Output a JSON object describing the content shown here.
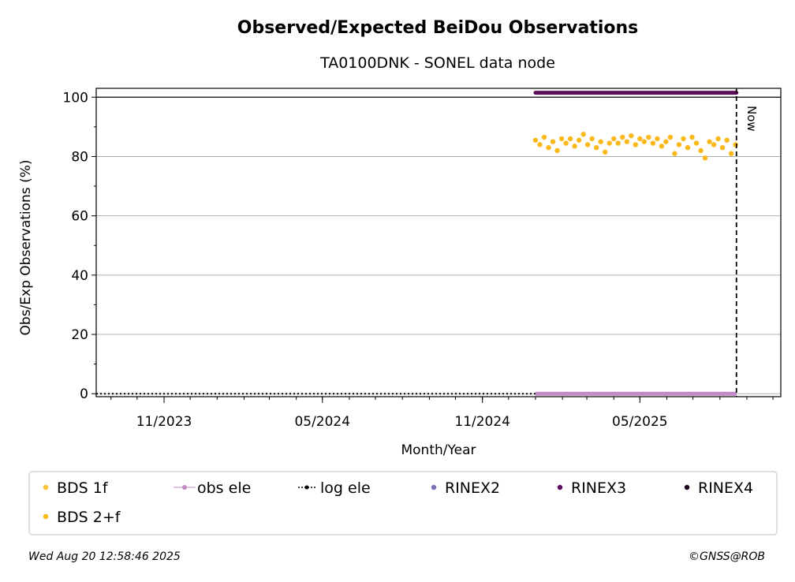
{
  "chart_data": {
    "type": "scatter",
    "title": "Observed/Expected BeiDou Observations",
    "subtitle": "TA0100DNK - SONEL data node",
    "xlabel": "Month/Year",
    "ylabel": "Obs/Exp Observations (%)",
    "x_axis_type": "date",
    "xlim": [
      "2023-08-15",
      "2025-10-10"
    ],
    "ylim": [
      -1,
      103
    ],
    "x_ticks": [
      {
        "date": "2023-11-01",
        "label": "11/2023"
      },
      {
        "date": "2024-05-01",
        "label": "05/2024"
      },
      {
        "date": "2024-11-01",
        "label": "11/2024"
      },
      {
        "date": "2025-05-01",
        "label": "05/2025"
      }
    ],
    "y_ticks": [
      0,
      20,
      40,
      60,
      80,
      100
    ],
    "grid": "horizontal",
    "legend_position": "below",
    "now_marker": {
      "date": "2025-08-20",
      "label": "Now"
    },
    "series": [
      {
        "name": "BDS 1f",
        "color": "#f8c43a",
        "values": []
      },
      {
        "name": "obs ele",
        "color": "#c38ac8",
        "values": [
          {
            "start": "2025-01-01",
            "end": "2025-08-20",
            "y": 0
          }
        ]
      },
      {
        "name": "log ele",
        "color": "#000000",
        "values": [
          {
            "start": "2023-08-15",
            "end": "2025-08-20",
            "y": 0
          }
        ]
      },
      {
        "name": "RINEX2",
        "color": "#7c6fb4",
        "values": []
      },
      {
        "name": "RINEX3",
        "color": "#5e0e5c",
        "values": [
          {
            "start": "2025-01-01",
            "end": "2025-08-20",
            "y": 101.5
          }
        ]
      },
      {
        "name": "RINEX4",
        "color": "#20051e",
        "values": []
      },
      {
        "name": "BDS 2+f",
        "color": "#fbb81a",
        "values": [
          {
            "x": "2025-01-01",
            "y": 85.5
          },
          {
            "x": "2025-01-06",
            "y": 84.0
          },
          {
            "x": "2025-01-11",
            "y": 86.5
          },
          {
            "x": "2025-01-16",
            "y": 83.0
          },
          {
            "x": "2025-01-21",
            "y": 85.0
          },
          {
            "x": "2025-01-26",
            "y": 82.0
          },
          {
            "x": "2025-01-31",
            "y": 86.0
          },
          {
            "x": "2025-02-05",
            "y": 84.5
          },
          {
            "x": "2025-02-10",
            "y": 86.0
          },
          {
            "x": "2025-02-15",
            "y": 83.5
          },
          {
            "x": "2025-02-20",
            "y": 85.5
          },
          {
            "x": "2025-02-25",
            "y": 87.5
          },
          {
            "x": "2025-03-02",
            "y": 84.0
          },
          {
            "x": "2025-03-07",
            "y": 86.0
          },
          {
            "x": "2025-03-12",
            "y": 83.0
          },
          {
            "x": "2025-03-17",
            "y": 85.0
          },
          {
            "x": "2025-03-22",
            "y": 81.5
          },
          {
            "x": "2025-03-27",
            "y": 84.5
          },
          {
            "x": "2025-04-01",
            "y": 86.0
          },
          {
            "x": "2025-04-06",
            "y": 84.5
          },
          {
            "x": "2025-04-11",
            "y": 86.5
          },
          {
            "x": "2025-04-16",
            "y": 85.0
          },
          {
            "x": "2025-04-21",
            "y": 87.0
          },
          {
            "x": "2025-04-26",
            "y": 84.0
          },
          {
            "x": "2025-05-01",
            "y": 86.0
          },
          {
            "x": "2025-05-06",
            "y": 85.0
          },
          {
            "x": "2025-05-11",
            "y": 86.5
          },
          {
            "x": "2025-05-16",
            "y": 84.5
          },
          {
            "x": "2025-05-21",
            "y": 86.0
          },
          {
            "x": "2025-05-26",
            "y": 83.5
          },
          {
            "x": "2025-05-31",
            "y": 85.0
          },
          {
            "x": "2025-06-05",
            "y": 86.5
          },
          {
            "x": "2025-06-10",
            "y": 81.0
          },
          {
            "x": "2025-06-15",
            "y": 84.0
          },
          {
            "x": "2025-06-20",
            "y": 86.0
          },
          {
            "x": "2025-06-25",
            "y": 83.0
          },
          {
            "x": "2025-06-30",
            "y": 86.5
          },
          {
            "x": "2025-07-05",
            "y": 84.5
          },
          {
            "x": "2025-07-10",
            "y": 82.0
          },
          {
            "x": "2025-07-15",
            "y": 79.5
          },
          {
            "x": "2025-07-20",
            "y": 85.0
          },
          {
            "x": "2025-07-25",
            "y": 84.0
          },
          {
            "x": "2025-07-30",
            "y": 86.0
          },
          {
            "x": "2025-08-04",
            "y": 83.0
          },
          {
            "x": "2025-08-09",
            "y": 85.5
          },
          {
            "x": "2025-08-14",
            "y": 81.0
          },
          {
            "x": "2025-08-19",
            "y": 84.0
          }
        ]
      }
    ]
  },
  "legend_order": [
    "BDS 1f",
    "obs ele",
    "log ele",
    "RINEX2",
    "RINEX3",
    "RINEX4",
    "BDS 2+f"
  ],
  "footer": {
    "timestamp": "Wed Aug 20 12:58:46 2025",
    "credit": "©GNSS@ROB"
  }
}
